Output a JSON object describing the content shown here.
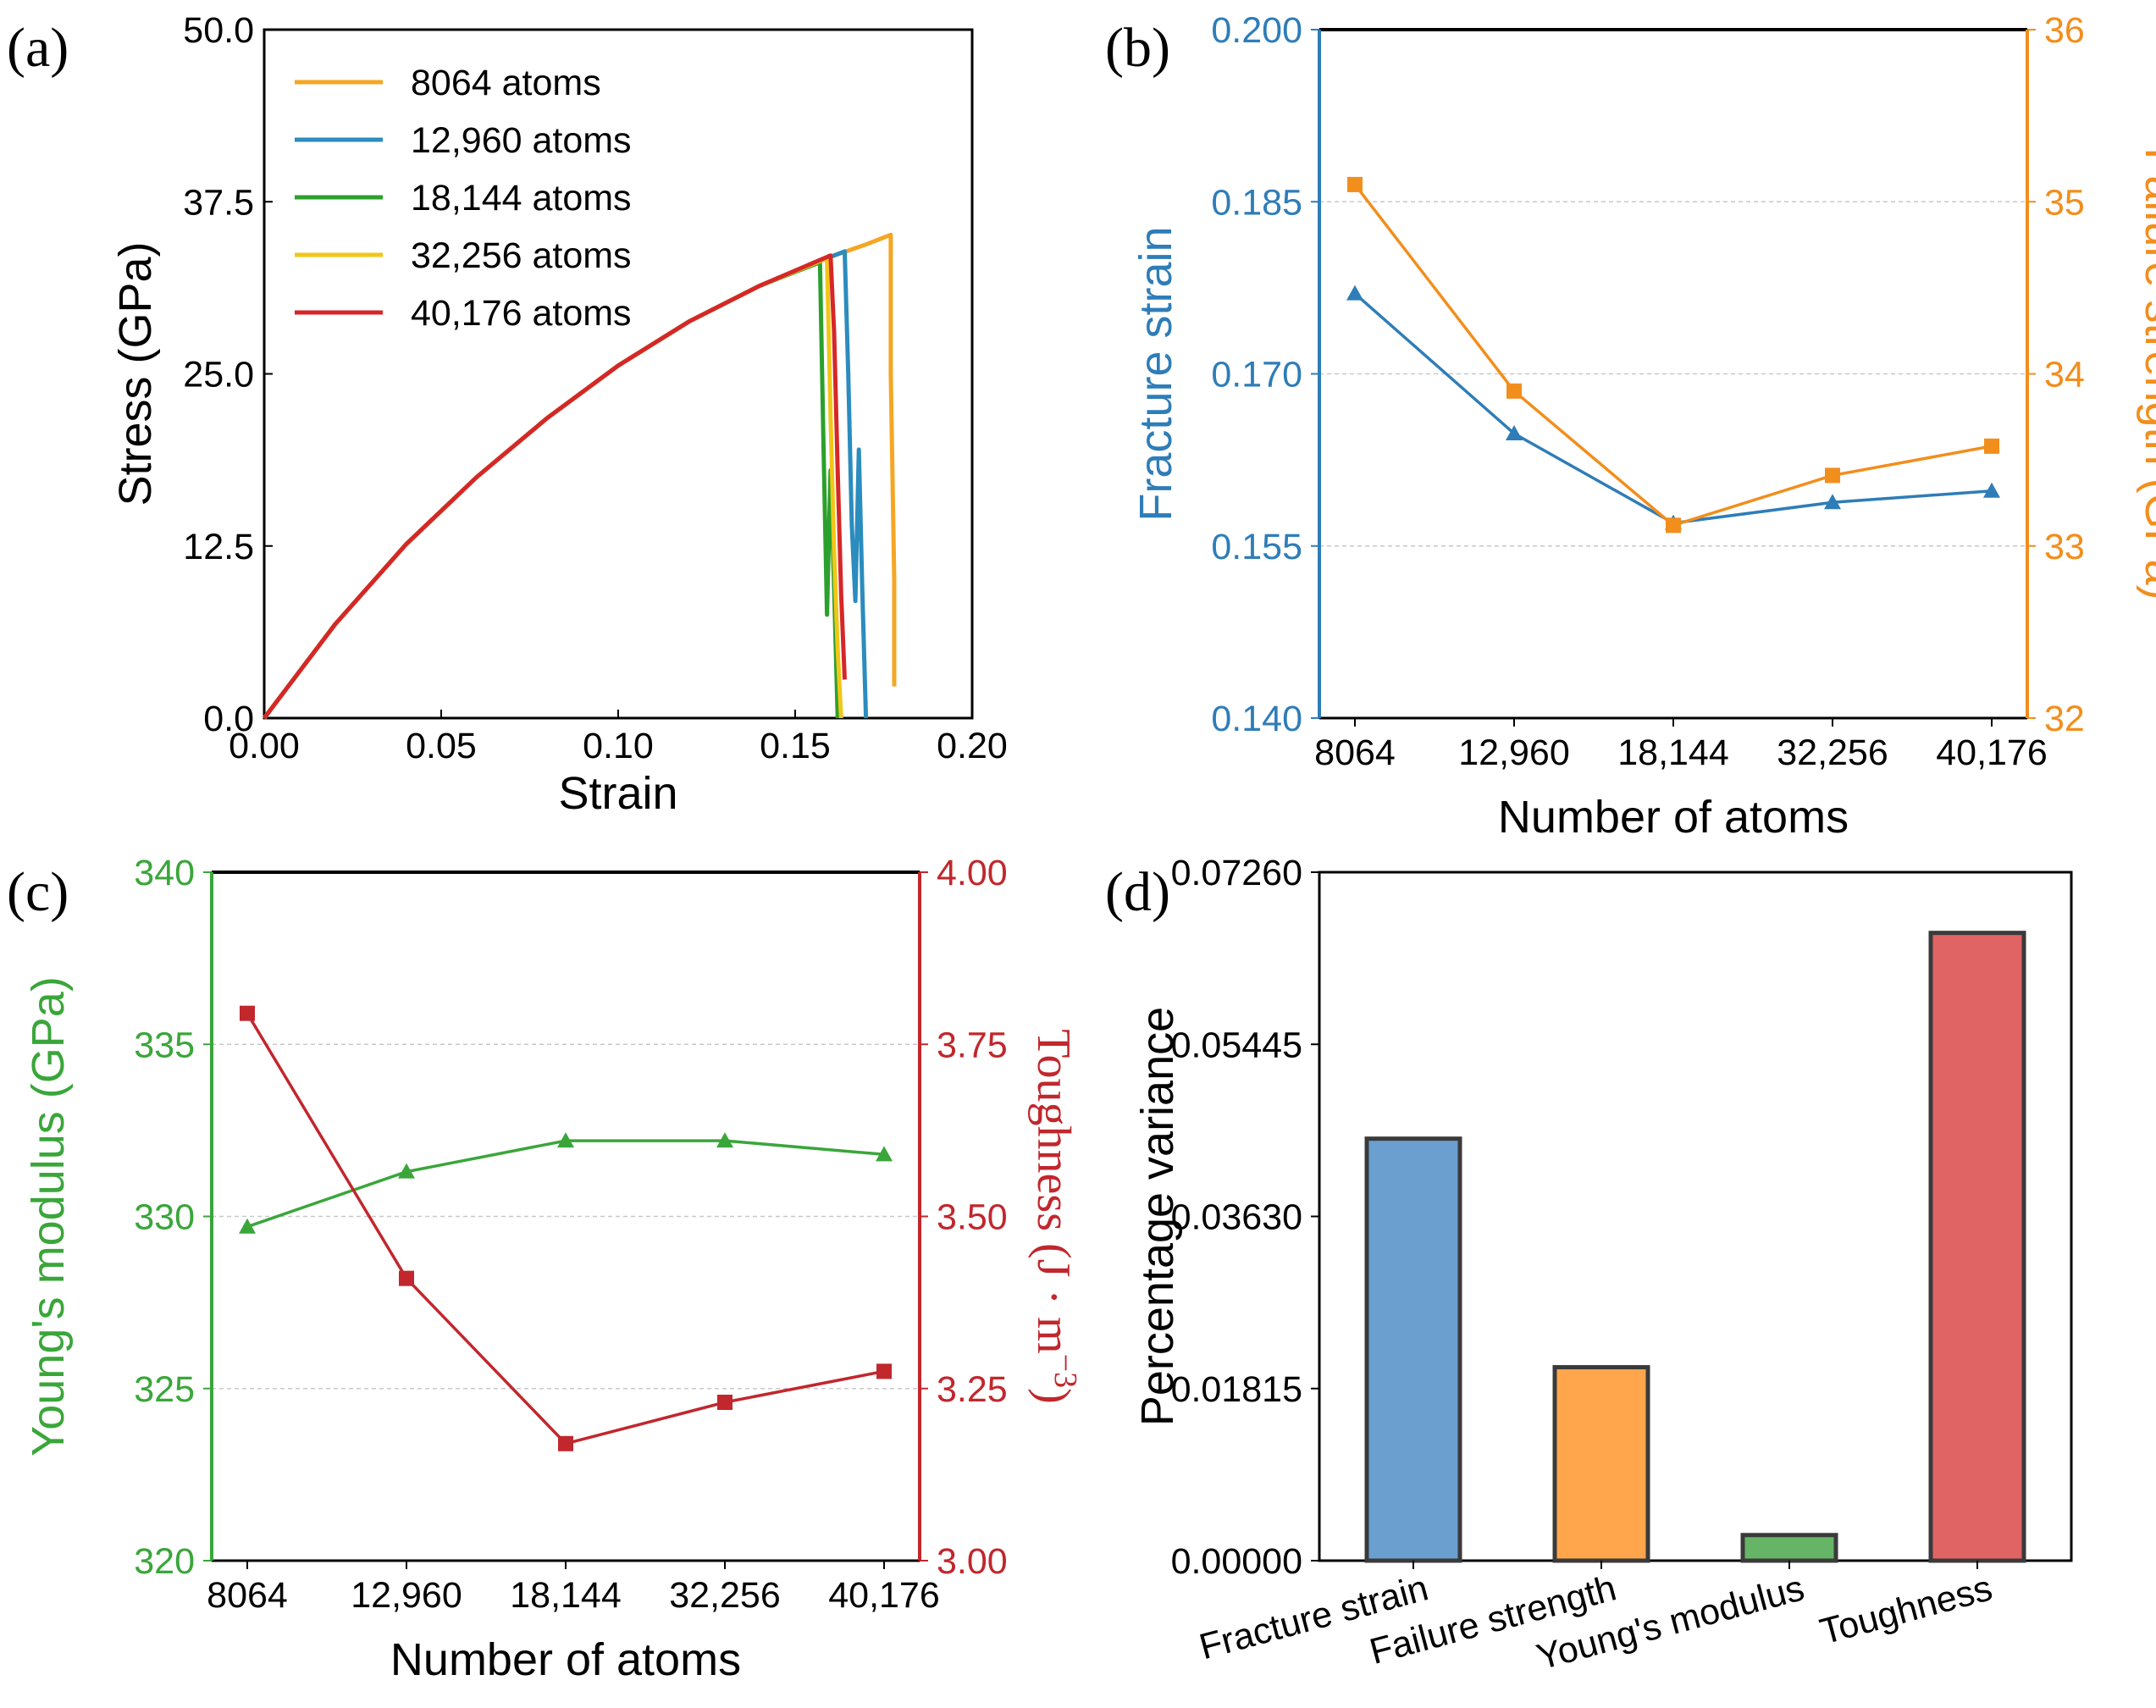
{
  "colors": {
    "orange": "#F5A623",
    "blue": "#2B8CBE",
    "green": "#2CA02C",
    "yellow": "#F2C618",
    "red": "#D62728",
    "line_blue": "#2E7DB8",
    "line_orange": "#F28E1C",
    "line_green": "#3AA63A",
    "line_red": "#C1272D",
    "bar_blue": "#6A9FD0",
    "bar_orange": "#FFA64D",
    "bar_green": "#66B566",
    "bar_red": "#E06464"
  },
  "chart_data": [
    {
      "panel": "(a)",
      "type": "line",
      "xlabel": "Strain",
      "ylabel": "Stress (GPa)",
      "xlim": [
        0,
        0.2
      ],
      "ylim": [
        0,
        50
      ],
      "xticks": [
        "0.00",
        "0.05",
        "0.10",
        "0.15",
        "0.20"
      ],
      "yticks": [
        "0.0",
        "12.5",
        "25.0",
        "37.5",
        "50.0"
      ],
      "legend_position": "top-left",
      "series": [
        {
          "name": "8064 atoms",
          "color": "#F5A623",
          "fracture_strain": 0.177,
          "peak_stress": 35.1,
          "x": [
            0,
            0.02,
            0.04,
            0.06,
            0.08,
            0.1,
            0.12,
            0.14,
            0.16,
            0.17,
            0.177,
            0.177,
            0.178,
            0.178
          ],
          "y": [
            0,
            6.8,
            12.6,
            17.5,
            21.8,
            25.6,
            28.8,
            31.4,
            33.5,
            34.4,
            35.1,
            25.0,
            10.0,
            2.3
          ]
        },
        {
          "name": "12,960 atoms",
          "color": "#2B8CBE",
          "fracture_strain": 0.164,
          "peak_stress": 33.9,
          "x": [
            0,
            0.02,
            0.04,
            0.06,
            0.08,
            0.1,
            0.12,
            0.14,
            0.16,
            0.164,
            0.165,
            0.166,
            0.167,
            0.168,
            0.169,
            0.17
          ],
          "y": [
            0,
            6.8,
            12.6,
            17.5,
            21.8,
            25.6,
            28.8,
            31.4,
            33.5,
            33.9,
            25.0,
            14.0,
            8.5,
            19.5,
            9.0,
            0
          ]
        },
        {
          "name": "18,144 atoms",
          "color": "#2CA02C",
          "fracture_strain": 0.157,
          "peak_stress": 33.1,
          "x": [
            0,
            0.02,
            0.04,
            0.06,
            0.08,
            0.1,
            0.12,
            0.14,
            0.157,
            0.158,
            0.159,
            0.16,
            0.161,
            0.162
          ],
          "y": [
            0,
            6.8,
            12.6,
            17.5,
            21.8,
            25.6,
            28.8,
            31.4,
            33.1,
            20.0,
            7.5,
            18.0,
            9.5,
            0
          ]
        },
        {
          "name": "32,256 atoms",
          "color": "#F2C618",
          "fracture_strain": 0.159,
          "peak_stress": 33.4,
          "x": [
            0,
            0.02,
            0.04,
            0.06,
            0.08,
            0.1,
            0.12,
            0.14,
            0.159,
            0.16,
            0.161,
            0.162,
            0.163
          ],
          "y": [
            0,
            6.8,
            12.6,
            17.5,
            21.8,
            25.6,
            28.8,
            31.4,
            33.4,
            22.0,
            12.0,
            5.0,
            0
          ]
        },
        {
          "name": "40,176 atoms",
          "color": "#D62728",
          "fracture_strain": 0.16,
          "peak_stress": 33.6,
          "x": [
            0,
            0.02,
            0.04,
            0.06,
            0.08,
            0.1,
            0.12,
            0.14,
            0.16,
            0.161,
            0.162,
            0.163,
            0.164
          ],
          "y": [
            0,
            6.8,
            12.6,
            17.5,
            21.8,
            25.6,
            28.8,
            31.4,
            33.6,
            28.0,
            18.0,
            9.0,
            2.8
          ]
        }
      ]
    },
    {
      "panel": "(b)",
      "type": "line",
      "categories": [
        "8064",
        "12,960",
        "18,144",
        "32,256",
        "40,176"
      ],
      "xlabel": "Number of atoms",
      "ylabel_left": "Fracture strain",
      "ylabel_right": "Failure strength (GPa)",
      "ylim_left": [
        0.14,
        0.2
      ],
      "ylim_right": [
        32,
        36
      ],
      "yticks_left": [
        "0.140",
        "0.155",
        "0.170",
        "0.185",
        "0.200"
      ],
      "yticks_right": [
        "32",
        "33",
        "34",
        "35",
        "36"
      ],
      "series": [
        {
          "name": "Fracture strain",
          "axis": "left",
          "marker": "triangle",
          "color": "#2E7DB8",
          "values": [
            0.177,
            0.1648,
            0.157,
            0.1588,
            0.1598
          ]
        },
        {
          "name": "Failure strength",
          "axis": "right",
          "marker": "square",
          "color": "#F28E1C",
          "values": [
            35.1,
            33.9,
            33.12,
            33.41,
            33.58
          ]
        }
      ]
    },
    {
      "panel": "(c)",
      "type": "line",
      "categories": [
        "8064",
        "12,960",
        "18,144",
        "32,256",
        "40,176"
      ],
      "xlabel": "Number of atoms",
      "ylabel_left": "Young's modulus (GPa)",
      "ylabel_right": "Toughness (J · m⁻³)",
      "ylim_left": [
        320,
        340
      ],
      "ylim_right": [
        3.0,
        4.0
      ],
      "yticks_left": [
        "320",
        "325",
        "330",
        "335",
        "340"
      ],
      "yticks_right": [
        "3.00",
        "3.25",
        "3.50",
        "3.75",
        "4.00"
      ],
      "series": [
        {
          "name": "Young's modulus",
          "axis": "left",
          "marker": "triangle",
          "color": "#3AA63A",
          "values": [
            329.7,
            331.3,
            332.2,
            332.2,
            331.8
          ]
        },
        {
          "name": "Toughness",
          "axis": "right",
          "marker": "square",
          "color": "#C1272D",
          "values": [
            3.795,
            3.41,
            3.17,
            3.23,
            3.275
          ]
        }
      ]
    },
    {
      "panel": "(d)",
      "type": "bar",
      "categories": [
        "Fracture strain",
        "Failure strength",
        "Young's modulus",
        "Toughness"
      ],
      "values": [
        0.0445,
        0.0204,
        0.0027,
        0.0662
      ],
      "bar_colors": [
        "#6A9FD0",
        "#FFA64D",
        "#66B566",
        "#E06464"
      ],
      "xlabel": "",
      "ylabel": "Percentage variance",
      "ylim": [
        0,
        0.0726
      ],
      "yticks": [
        "0.00000",
        "0.01815",
        "0.03630",
        "0.05445",
        "0.07260"
      ]
    }
  ]
}
